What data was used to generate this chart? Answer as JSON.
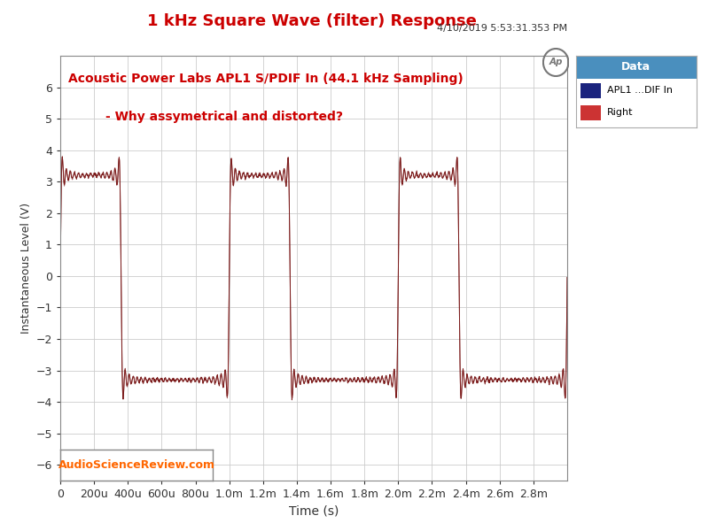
{
  "title": "1 kHz Square Wave (filter) Response",
  "title_color": "#cc0000",
  "subtitle": "4/10/2019 5:53:31.353 PM",
  "subtitle_color": "#333333",
  "annotation_line1": "Acoustic Power Labs APL1 S/PDIF In (44.1 kHz Sampling)",
  "annotation_line2": "- Why assymetrical and distorted?",
  "annotation_color": "#cc0000",
  "xlabel": "Time (s)",
  "ylabel": "Instantaneous Level (V)",
  "tick_color": "#333333",
  "label_color": "#333333",
  "xlim": [
    0,
    0.003
  ],
  "ylim": [
    -6.5,
    7.0
  ],
  "ytick_min": -6,
  "ytick_max": 6,
  "xtick_positions": [
    0,
    0.0002,
    0.0004,
    0.0006,
    0.0008,
    0.001,
    0.0012,
    0.0014,
    0.0016,
    0.0018,
    0.002,
    0.0022,
    0.0024,
    0.0026,
    0.0028
  ],
  "xtick_labels": [
    "0",
    "200u",
    "400u",
    "600u",
    "800u",
    "1.0m",
    "1.2m",
    "1.4m",
    "1.6m",
    "1.8m",
    "2.0m",
    "2.2m",
    "2.4m",
    "2.6m",
    "2.8m"
  ],
  "grid_color": "#cccccc",
  "bg_color": "#ffffff",
  "legend_title": "Data",
  "legend_title_bg": "#4a8fbe",
  "legend_entries": [
    "APL1 ...DIF In",
    "Right"
  ],
  "legend_colors": [
    "#1a237e",
    "#cc3333"
  ],
  "line_color": "#7b1a1a",
  "watermark_text": "AudioScienceReview.com",
  "watermark_color": "#ff6600",
  "frequency_hz": 1000,
  "high_level": 3.2,
  "low_level": -3.3,
  "duty_cycle": 0.36,
  "n_harmonics": 21,
  "sample_rate": 500000,
  "duration": 0.003
}
